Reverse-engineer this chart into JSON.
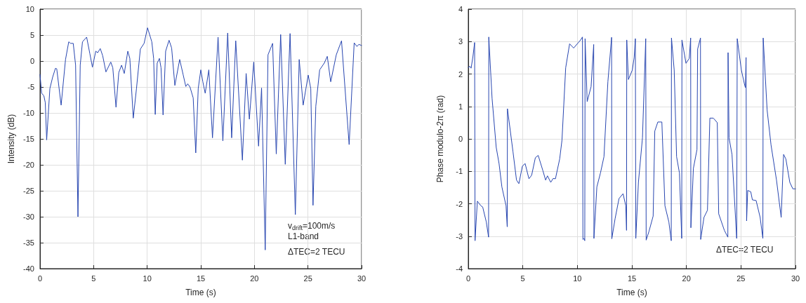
{
  "chart_data": [
    {
      "type": "line",
      "xlabel": "Time (s)",
      "ylabel": "Intensity (dB)",
      "xlim": [
        0,
        30
      ],
      "ylim": [
        -40,
        10
      ],
      "xticks": [
        0,
        5,
        10,
        15,
        20,
        25,
        30
      ],
      "yticks": [
        -40,
        -35,
        -30,
        -25,
        -20,
        -15,
        -10,
        -5,
        0,
        5,
        10
      ],
      "grid": true,
      "marker": "none",
      "line_style": "solid",
      "annotations": [
        "v$_{drift}$=100m/s",
        "L1-band",
        "ΔTEC=2 TECU"
      ],
      "series": [
        {
          "color": "#2846b0",
          "x": [
            0,
            0.15,
            0.36,
            0.49,
            0.62,
            0.92,
            1.18,
            1.44,
            1.56,
            1.97,
            2.38,
            2.68,
            2.85,
            3.1,
            3.32,
            3.54,
            3.75,
            3.96,
            4.35,
            4.65,
            4.89,
            5.2,
            5.38,
            5.62,
            5.85,
            6.15,
            6.6,
            6.79,
            7.09,
            7.35,
            7.61,
            7.86,
            8.19,
            8.38,
            8.7,
            9,
            9.36,
            9.71,
            10.03,
            10.43,
            10.6,
            10.75,
            10.93,
            11.14,
            11.29,
            11.48,
            11.72,
            12.04,
            12.28,
            12.58,
            13.03,
            13.35,
            13.6,
            13.78,
            13.99,
            14.29,
            14.53,
            14.76,
            15,
            15.19,
            15.41,
            15.75,
            16.09,
            16.61,
            17.06,
            17.51,
            17.88,
            18.26,
            18.88,
            19.23,
            19.53,
            19.94,
            20.39,
            20.67,
            21.01,
            21.27,
            21.7,
            22.04,
            22.45,
            22.88,
            23.33,
            23.82,
            24.18,
            24.55,
            25.02,
            25.26,
            25.47,
            25.73,
            26.09,
            26.52,
            26.8,
            27.12,
            27.64,
            28.13,
            28.84,
            29.31,
            29.57,
            29.74,
            30
          ],
          "values": [
            -2.6,
            -6.2,
            -6.7,
            -8,
            -15.2,
            -5.3,
            -3.1,
            -1.4,
            -1.5,
            -8.5,
            0.3,
            3.7,
            3.4,
            3.4,
            -0.8,
            -30,
            -0.8,
            3.7,
            4.6,
            1.4,
            -1.2,
            1.9,
            1.6,
            2.4,
            1,
            -2.1,
            -0.2,
            -1.3,
            -8.9,
            -2.2,
            -0.8,
            -2.4,
            1.9,
            0.5,
            -11,
            -5.3,
            2.3,
            3.4,
            6.4,
            3.7,
            0.5,
            -10.3,
            -0.4,
            0.5,
            -1.3,
            -10.4,
            1.9,
            4,
            2.5,
            -4.7,
            0.3,
            -2.6,
            -4.9,
            -4.4,
            -5,
            -7.1,
            -17.7,
            -5.3,
            -1.7,
            -4,
            -6.2,
            -1.7,
            -14.8,
            4.6,
            -15.4,
            5.4,
            -14.8,
            3.9,
            -19.1,
            -2.4,
            -11.2,
            -0.2,
            -16.4,
            -5.2,
            -36.4,
            1.2,
            3.4,
            -17.9,
            5.1,
            -19.9,
            5.3,
            -29.6,
            0.3,
            -8.5,
            -2.7,
            -5.3,
            -27.8,
            -8.7,
            -1.7,
            -0.4,
            0.9,
            -4,
            1.2,
            3.9,
            -16.1,
            3.5,
            2.8,
            3.2,
            3
          ]
        }
      ]
    },
    {
      "type": "line",
      "xlabel": "Time (s)",
      "ylabel": "Phase modulo-2π (rad)",
      "xlim": [
        0,
        30
      ],
      "ylim": [
        -4,
        4
      ],
      "xticks": [
        0,
        5,
        10,
        15,
        20,
        25,
        30
      ],
      "yticks": [
        -4,
        -3,
        -2,
        -1,
        0,
        1,
        2,
        3,
        4
      ],
      "grid": true,
      "marker": "none",
      "line_style": "solid",
      "annotations": [
        "ΔTEC=2 TECU"
      ],
      "series": [
        {
          "color": "#2846b0",
          "x": [
            0,
            0.13,
            0.26,
            0.43,
            0.58,
            0.62,
            0.83,
            1.15,
            1.32,
            1.65,
            1.86,
            1.88,
            2.18,
            2.56,
            2.82,
            3.08,
            3.46,
            3.57,
            3.59,
            4.1,
            4.42,
            4.64,
            4.96,
            5.21,
            5.56,
            5.81,
            6.15,
            6.41,
            6.84,
            7.09,
            7.26,
            7.56,
            7.78,
            7.99,
            8.38,
            8.59,
            8.93,
            9.29,
            9.66,
            10.3,
            10.47,
            10.51,
            10.62,
            10.68,
            10.71,
            10.9,
            11.26,
            11.5,
            11.52,
            11.79,
            12.12,
            12.44,
            12.8,
            13.14,
            13.16,
            13.46,
            13.82,
            14.19,
            14.44,
            14.51,
            14.53,
            14.68,
            15.04,
            15.21,
            15.32,
            15.36,
            15.6,
            15.97,
            16.27,
            16.31,
            16.57,
            16.95,
            17.1,
            17.38,
            17.75,
            18.03,
            18.39,
            18.61,
            18.63,
            18.88,
            19.1,
            19.36,
            19.57,
            19.59,
            19.96,
            20.26,
            20.39,
            20.41,
            20.64,
            20.97,
            21.03,
            21.29,
            21.31,
            21.61,
            21.93,
            22.15,
            22.47,
            22.83,
            22.96,
            23.48,
            23.8,
            23.82,
            23.91,
            24.18,
            24.61,
            24.66,
            25.04,
            25.32,
            25.41,
            25.47,
            25.52,
            25.62,
            25.9,
            26.05,
            26.39,
            26.76,
            27.01,
            27.04,
            27.4,
            27.76,
            28.26,
            28.69,
            28.91,
            29.12,
            29.48,
            29.76,
            30
          ],
          "values": [
            2.19,
            2.24,
            2.18,
            2.55,
            2.97,
            -3.14,
            -1.92,
            -2.06,
            -2.1,
            -2.56,
            -3.03,
            3.14,
            1.25,
            -0.26,
            -0.76,
            -1.48,
            -2.06,
            -2.71,
            0.93,
            -0.4,
            -1.27,
            -1.38,
            -0.84,
            -0.76,
            -1.23,
            -1.12,
            -0.58,
            -0.51,
            -0.98,
            -1.27,
            -1.14,
            -1.34,
            -1.22,
            -1.23,
            -0.62,
            -0.04,
            2.19,
            2.93,
            2.8,
            3.05,
            3.14,
            -3.1,
            -3.07,
            -3.14,
            3.09,
            1.15,
            1.61,
            2.91,
            -3.07,
            -1.48,
            -1.05,
            -0.55,
            1.76,
            3.13,
            -3.08,
            -2.46,
            -1.84,
            -1.69,
            -2.06,
            -2.82,
            3.05,
            1.83,
            2.12,
            2.51,
            3.09,
            -3.07,
            -1.34,
            0.03,
            3.09,
            -3.12,
            -2.85,
            -2.38,
            0.24,
            0.52,
            0.52,
            -2.06,
            -2.56,
            -3.14,
            3.11,
            2.12,
            -0.55,
            -1.05,
            -3.07,
            3.05,
            2.33,
            2.48,
            3.11,
            -2.74,
            -0.91,
            -0.33,
            2.77,
            3.11,
            -3.1,
            -2.42,
            -2.2,
            0.64,
            0.64,
            0.5,
            -2.31,
            -2.82,
            -3.03,
            2.66,
            0.03,
            -0.48,
            -3.07,
            3.09,
            2.12,
            1.69,
            1.58,
            2.51,
            -2.53,
            -1.59,
            -1.63,
            -1.88,
            -1.9,
            -2.42,
            -3.07,
            3.11,
            0.89,
            -0.19,
            -1.27,
            -2.42,
            -0.48,
            -0.62,
            -1.34,
            -1.54,
            -1.54
          ]
        }
      ]
    }
  ]
}
